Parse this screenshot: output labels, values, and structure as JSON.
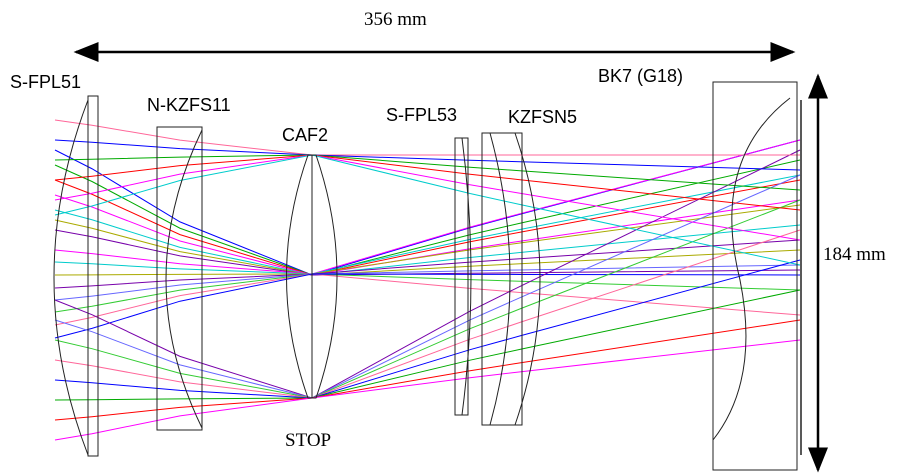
{
  "dimensions": {
    "length": "356 mm",
    "height": "184 mm"
  },
  "lenses": [
    {
      "label": "S-FPL51"
    },
    {
      "label": "N-KZFS11"
    },
    {
      "label": "CAF2"
    },
    {
      "label": "S-FPL53"
    },
    {
      "label": "KZFSN5"
    },
    {
      "label": "BK7 (G18)"
    }
  ],
  "stop_label": "STOP"
}
